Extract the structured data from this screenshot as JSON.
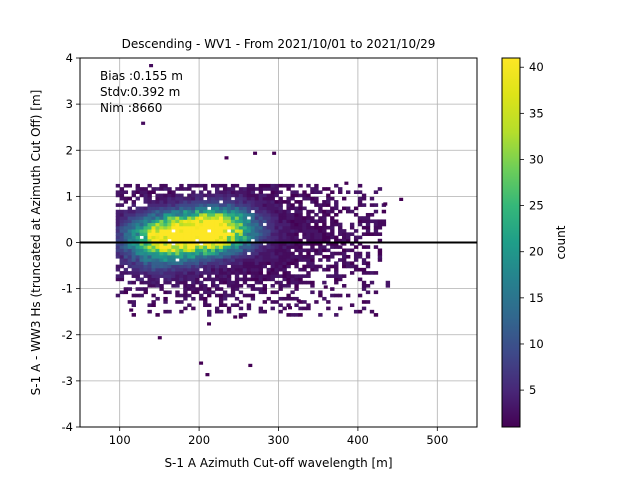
{
  "chart_data": {
    "type": "heatmap",
    "title": "Descending - WV1 - From 2021/10/01 to 2021/10/29",
    "xlabel": "S-1 A Azimuth Cut-off wavelength [m]",
    "ylabel": "S-1 A - WW3 Hs (truncated at Azimuth Cut Off) [m]",
    "xlim": [
      50,
      550
    ],
    "ylim": [
      -4,
      4
    ],
    "xticks": [
      100,
      200,
      300,
      400,
      500
    ],
    "yticks": [
      -4,
      -3,
      -2,
      -1,
      0,
      1,
      2,
      3,
      4
    ],
    "grid": true,
    "reference_line_y": 0,
    "stats": {
      "bias": "Bias :0.155 m",
      "stdv": "Stdv:0.392 m",
      "nim": "Nim :8660"
    },
    "colorbar": {
      "label": "count",
      "min": 1,
      "max": 41,
      "ticks": [
        5,
        10,
        15,
        20,
        25,
        30,
        35,
        40
      ],
      "colormap": "viridis"
    },
    "density_clusters": [
      {
        "cx": 185,
        "cy": 0.15,
        "sx": 38,
        "sy": 0.28,
        "peak": 40
      },
      {
        "cx": 225,
        "cy": 0.3,
        "sx": 30,
        "sy": 0.3,
        "peak": 26
      },
      {
        "cx": 150,
        "cy": -0.05,
        "sx": 30,
        "sy": 0.35,
        "peak": 18
      }
    ],
    "outlier_points": [
      {
        "x": 137,
        "y": 3.8,
        "count": 2
      },
      {
        "x": 127,
        "y": 2.55,
        "count": 2
      },
      {
        "x": 208,
        "y": -2.9,
        "count": 1
      },
      {
        "x": 200,
        "y": -2.65,
        "count": 1
      },
      {
        "x": 262,
        "y": -2.7,
        "count": 1
      },
      {
        "x": 148,
        "y": -2.1,
        "count": 1
      },
      {
        "x": 268,
        "y": 1.9,
        "count": 1
      },
      {
        "x": 292,
        "y": 1.9,
        "count": 1
      },
      {
        "x": 232,
        "y": 1.8,
        "count": 1
      },
      {
        "x": 210,
        "y": -1.8,
        "count": 1
      },
      {
        "x": 243,
        "y": -1.65,
        "count": 1
      },
      {
        "x": 250,
        "y": -1.65,
        "count": 1
      },
      {
        "x": 112,
        "y": -1.5,
        "count": 1
      },
      {
        "x": 312,
        "y": -1.45,
        "count": 1
      },
      {
        "x": 323,
        "y": -1.3,
        "count": 1
      },
      {
        "x": 357,
        "y": -1.0,
        "count": 1
      },
      {
        "x": 383,
        "y": 1.25,
        "count": 1
      },
      {
        "x": 452,
        "y": 0.9,
        "count": 1
      },
      {
        "x": 432,
        "y": 0.8,
        "count": 1
      },
      {
        "x": 378,
        "y": -0.05,
        "count": 1
      }
    ]
  }
}
